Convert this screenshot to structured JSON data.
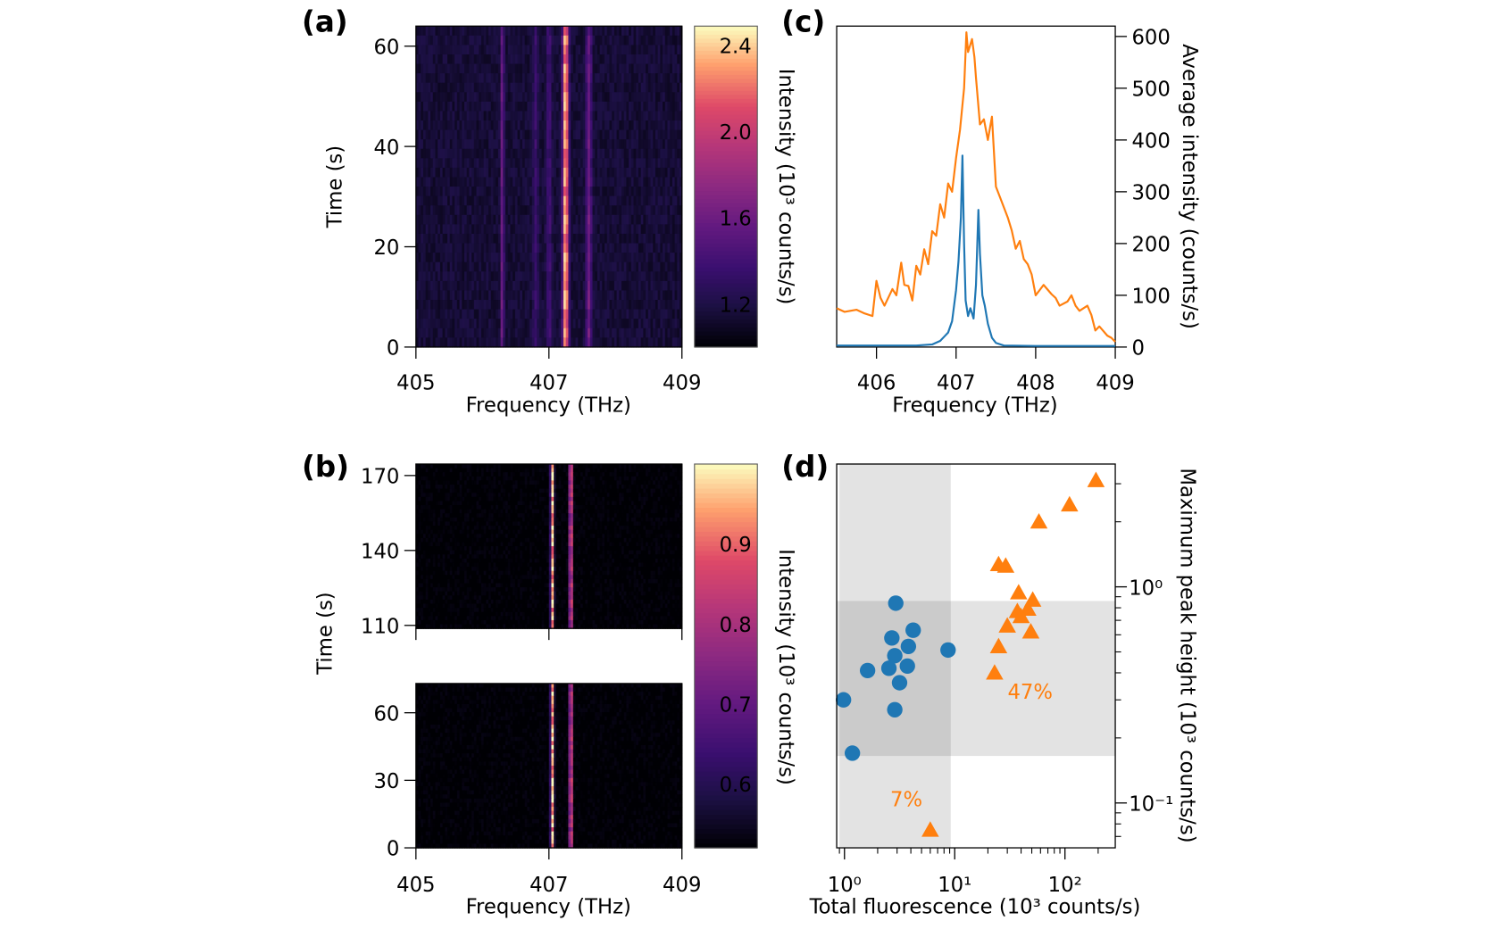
{
  "panel_labels": {
    "a": "(a)",
    "b": "(b)",
    "c": "(c)",
    "d": "(d)"
  },
  "colors": {
    "series_blue": "#1f77b4",
    "series_orange": "#ff7f0e",
    "shade": "#e3e3e3",
    "shade_overlap": "#cbcbcb",
    "colormap": "magma"
  },
  "chart_data": [
    {
      "id": "a",
      "type": "heatmap",
      "xlabel": "Frequency (THz)",
      "ylabel": "Time (s)",
      "xlim": [
        405,
        409
      ],
      "ylim": [
        0,
        64
      ],
      "xticks": [
        405,
        407,
        409
      ],
      "yticks": [
        0,
        20,
        40,
        60
      ],
      "colorbar": {
        "label": "Intensity (10³ counts/s)",
        "range": [
          1.0,
          2.49
        ],
        "ticks": [
          1.2,
          1.6,
          2.0,
          2.4
        ],
        "tick_labels": [
          "1.2",
          "1.6",
          "2.0",
          "2.4"
        ]
      },
      "background_level": 1.15,
      "peaks": [
        {
          "center": 406.3,
          "amplitude": 0.45
        },
        {
          "center": 406.8,
          "amplitude": 0.2
        },
        {
          "center": 407.0,
          "amplitude": 0.25
        },
        {
          "center": 407.25,
          "amplitude": 1.25
        },
        {
          "center": 407.6,
          "amplitude": 0.45
        }
      ]
    },
    {
      "id": "b",
      "type": "heatmap",
      "xlabel": "Frequency (THz)",
      "ylabel": "Time (s)",
      "xlim": [
        405,
        409
      ],
      "ylim_segments": [
        [
          0,
          73
        ],
        [
          108.8,
          174.6
        ]
      ],
      "xticks": [
        405,
        407,
        409
      ],
      "yticks_segments": [
        [
          0,
          30,
          60
        ],
        [
          110,
          140,
          170
        ]
      ],
      "colorbar": {
        "label": "Intensity (10³ counts/s)",
        "range": [
          0.52,
          1.0
        ],
        "ticks": [
          0.6,
          0.7,
          0.8,
          0.9
        ],
        "tick_labels": [
          "0.6",
          "0.7",
          "0.8",
          "0.9"
        ]
      },
      "background_level": 0.52,
      "peaks": [
        {
          "center": 407.05,
          "amplitude": 0.45
        },
        {
          "center": 407.33,
          "amplitude": 0.43
        }
      ]
    },
    {
      "id": "c",
      "type": "line",
      "xlabel": "Frequency (THz)",
      "ylabel_left": "Intensity (10³ counts/s)",
      "ylabel_right": "Average intensity (counts/s)",
      "xlim": [
        405.5,
        409
      ],
      "ylim": [
        0,
        620
      ],
      "xticks": [
        406,
        407,
        408,
        409
      ],
      "yticks_right": [
        0,
        100,
        200,
        300,
        400,
        500,
        600
      ],
      "series": [
        {
          "color": "#ff7f0e",
          "x": [
            405.5,
            405.6,
            405.75,
            405.85,
            405.95,
            406.0,
            406.05,
            406.1,
            406.2,
            406.25,
            406.31,
            406.35,
            406.4,
            406.45,
            406.5,
            406.55,
            406.6,
            406.65,
            406.7,
            406.75,
            406.8,
            406.85,
            406.9,
            406.95,
            407.0,
            407.05,
            407.1,
            407.13,
            407.15,
            407.2,
            407.23,
            407.25,
            407.3,
            407.35,
            407.4,
            407.45,
            407.5,
            407.55,
            407.6,
            407.65,
            407.7,
            407.75,
            407.8,
            407.85,
            407.9,
            407.95,
            408.0,
            408.05,
            408.1,
            408.2,
            408.25,
            408.3,
            408.4,
            408.45,
            408.5,
            408.55,
            408.65,
            408.7,
            408.75,
            408.8,
            408.9,
            408.95,
            409.0
          ],
          "y": [
            75,
            68,
            72,
            65,
            60,
            128,
            95,
            80,
            112,
            100,
            163,
            120,
            118,
            90,
            157,
            140,
            189,
            160,
            224,
            215,
            276,
            250,
            316,
            300,
            365,
            420,
            500,
            608,
            570,
            595,
            560,
            520,
            430,
            440,
            400,
            445,
            310,
            290,
            270,
            250,
            225,
            190,
            205,
            170,
            160,
            140,
            100,
            110,
            120,
            102,
            95,
            80,
            88,
            100,
            80,
            70,
            80,
            62,
            32,
            40,
            22,
            18,
            10
          ]
        },
        {
          "color": "#1f77b4",
          "x": [
            405.5,
            406.0,
            406.5,
            406.7,
            406.8,
            406.85,
            406.9,
            406.95,
            407.0,
            407.03,
            407.06,
            407.08,
            407.1,
            407.12,
            407.15,
            407.18,
            407.2,
            407.22,
            407.25,
            407.28,
            407.3,
            407.33,
            407.36,
            407.4,
            407.45,
            407.5,
            407.6,
            408.0,
            409.0
          ],
          "y": [
            3,
            3,
            3,
            5,
            12,
            20,
            28,
            50,
            110,
            165,
            250,
            370,
            200,
            90,
            60,
            75,
            65,
            55,
            120,
            265,
            180,
            100,
            80,
            45,
            18,
            8,
            3,
            2,
            2
          ]
        }
      ]
    },
    {
      "id": "d",
      "type": "scatter",
      "xlabel": "Total fluorescence (10³ counts/s)",
      "ylabel_left": "Intensity (10³ counts/s)",
      "ylabel_right": "Maximum peak height (10³ counts/s)",
      "xscale": "log",
      "yscale": "log",
      "xlim": [
        0.85,
        286
      ],
      "ylim": [
        0.062,
        3.7
      ],
      "xticks": [
        1,
        10,
        100
      ],
      "xtick_labels": [
        "10⁰",
        "10¹",
        "10²"
      ],
      "yticks_right": [
        0.1,
        1
      ],
      "ytick_labels_right": [
        "10⁻¹",
        "10⁰"
      ],
      "shaded_x_band": [
        0.9,
        9.2
      ],
      "shaded_y_band": [
        0.165,
        0.86
      ],
      "annotations": [
        {
          "text": "47%",
          "x": 45,
          "y": 0.33
        },
        {
          "text": "7%",
          "x": 5.2,
          "y": 0.105
        }
      ],
      "series": [
        {
          "marker": "circle",
          "color": "#1f77b4",
          "x": [
            2.92,
            4.2,
            2.69,
            3.8,
            2.86,
            1.62,
            2.53,
            3.72,
            3.16,
            8.7,
            0.98,
            2.86,
            1.18
          ],
          "y": [
            0.84,
            0.63,
            0.58,
            0.53,
            0.48,
            0.41,
            0.42,
            0.43,
            0.36,
            0.51,
            0.3,
            0.27,
            0.17
          ]
        },
        {
          "marker": "triangle",
          "color": "#ff7f0e",
          "x": [
            191,
            110,
            58,
            25,
            29,
            38,
            51,
            37,
            46,
            40,
            30,
            49,
            25,
            23,
            6.0
          ],
          "y": [
            3.11,
            2.4,
            2.0,
            1.27,
            1.25,
            0.94,
            0.87,
            0.77,
            0.79,
            0.73,
            0.66,
            0.62,
            0.53,
            0.4,
            0.075
          ]
        }
      ]
    }
  ]
}
